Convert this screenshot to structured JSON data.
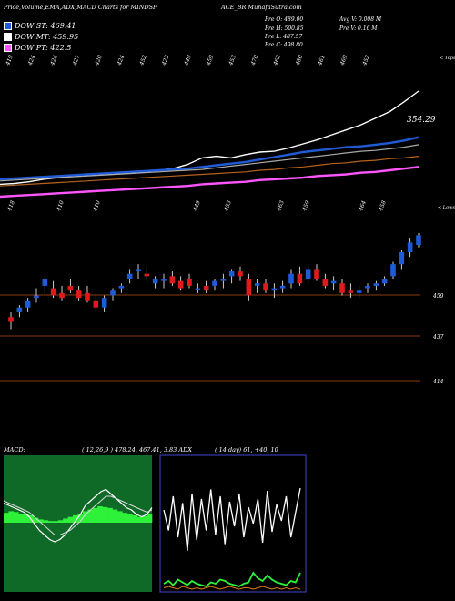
{
  "header": {
    "title": "Price,Volume,EMA,ADX,MACD Charts for MINDSP",
    "symbol": "ACE_BR",
    "site": "MunafaSutra.com"
  },
  "legend": [
    {
      "label": "DOW ST: 469.41",
      "color": "#1f5bd6"
    },
    {
      "label": "DOW MT: 459.95",
      "color": "#ffffff"
    },
    {
      "label": "DOW PT: 422.5",
      "color": "#ff55ff"
    }
  ],
  "stats": {
    "pre_o": "Pre  O: 489.00",
    "pre_h": "Pre  H: 500.85",
    "pre_l": "Pre  L: 487.57",
    "pre_c": "Pre  C: 498.80",
    "avg_v": "Avg V: 0.008  M",
    "pre_v": "Pre  V: 0.16  M"
  },
  "panel_labels": {
    "top": "< Tops",
    "lows": "< Lows",
    "macd": "MACD:",
    "macd_values": "( 12,26,9 ) 478.24,  467.41, 3.83 ADX",
    "adx_values": "( 14  day) 61,  +40,  10"
  },
  "chart_data": [
    {
      "type": "line",
      "name": "ema-panel",
      "top_tick_labels": [
        "419",
        "424",
        "424",
        "427",
        "420",
        "424",
        "452",
        "422",
        "449",
        "459",
        "453",
        "470",
        "462",
        "480",
        "461",
        "469",
        "452"
      ],
      "low_tick_labels": [
        "418",
        "410",
        "410",
        "449",
        "453",
        "463",
        "459",
        "464",
        "458"
      ],
      "last_price_label": "354.29",
      "series": [
        {
          "color": "#ffffff",
          "values": [
            386,
            387,
            389,
            392,
            394,
            396,
            397,
            398,
            399,
            400,
            401,
            403,
            405,
            410,
            418,
            420,
            418,
            422,
            425,
            426,
            430,
            435,
            440,
            446,
            452,
            458,
            466,
            474,
            486,
            499
          ]
        },
        {
          "color": "#1f5bd6",
          "values": [
            392,
            393,
            394,
            395,
            396,
            397,
            398,
            399,
            400,
            401,
            402,
            403,
            404,
            405,
            407,
            409,
            411,
            413,
            416,
            419,
            422,
            425,
            427,
            429,
            431,
            432,
            434,
            436,
            439,
            443
          ]
        },
        {
          "color": "#aaaaaa",
          "values": [
            390,
            391,
            392,
            393,
            394,
            395,
            396,
            397,
            398,
            399,
            400,
            401,
            402,
            403,
            404,
            406,
            408,
            410,
            412,
            414,
            416,
            418,
            420,
            422,
            424,
            426,
            427,
            429,
            431,
            434
          ]
        },
        {
          "color": "#b8621b",
          "values": [
            384,
            385,
            386,
            387,
            388,
            389,
            390,
            391,
            392,
            393,
            394,
            395,
            396,
            397,
            398,
            399,
            400,
            401,
            403,
            404,
            406,
            407,
            409,
            411,
            412,
            414,
            415,
            417,
            418,
            420
          ]
        },
        {
          "color": "#ff55ff",
          "values": [
            371,
            372,
            373,
            374,
            375,
            376,
            377,
            378,
            379,
            380,
            381,
            382,
            383,
            384,
            386,
            387,
            388,
            389,
            391,
            392,
            393,
            394,
            396,
            397,
            398,
            400,
            401,
            403,
            405,
            407
          ]
        }
      ]
    },
    {
      "type": "candlestick",
      "name": "price-panel",
      "y_labels": [
        "459",
        "437",
        "414"
      ],
      "candles": [
        {
          "o": 449,
          "h": 451,
          "l": 444,
          "c": 447,
          "up": false
        },
        {
          "o": 451,
          "h": 454,
          "l": 449,
          "c": 453,
          "up": true
        },
        {
          "o": 453,
          "h": 457,
          "l": 451,
          "c": 456,
          "up": true
        },
        {
          "o": 457,
          "h": 461,
          "l": 455,
          "c": 458,
          "up": true
        },
        {
          "o": 462,
          "h": 466,
          "l": 459,
          "c": 465,
          "up": true
        },
        {
          "o": 461,
          "h": 464,
          "l": 457,
          "c": 458,
          "up": false
        },
        {
          "o": 459,
          "h": 462,
          "l": 456,
          "c": 457,
          "up": false
        },
        {
          "o": 462,
          "h": 465,
          "l": 459,
          "c": 460,
          "up": false
        },
        {
          "o": 460,
          "h": 462,
          "l": 456,
          "c": 457,
          "up": false
        },
        {
          "o": 459,
          "h": 462,
          "l": 455,
          "c": 456,
          "up": false
        },
        {
          "o": 456,
          "h": 458,
          "l": 452,
          "c": 453,
          "up": false
        },
        {
          "o": 453,
          "h": 458,
          "l": 451,
          "c": 457,
          "up": true
        },
        {
          "o": 458,
          "h": 461,
          "l": 456,
          "c": 460,
          "up": true
        },
        {
          "o": 461,
          "h": 463,
          "l": 459,
          "c": 462,
          "up": true
        },
        {
          "o": 465,
          "h": 469,
          "l": 463,
          "c": 467,
          "up": true
        },
        {
          "o": 468,
          "h": 471,
          "l": 465,
          "c": 469,
          "up": true
        },
        {
          "o": 467,
          "h": 470,
          "l": 464,
          "c": 466,
          "up": false
        },
        {
          "o": 463,
          "h": 466,
          "l": 461,
          "c": 465,
          "up": true
        },
        {
          "o": 464,
          "h": 467,
          "l": 461,
          "c": 465,
          "up": true
        },
        {
          "o": 466,
          "h": 468,
          "l": 462,
          "c": 463,
          "up": false
        },
        {
          "o": 464,
          "h": 466,
          "l": 460,
          "c": 461,
          "up": false
        },
        {
          "o": 465,
          "h": 467,
          "l": 461,
          "c": 462,
          "up": false
        },
        {
          "o": 461,
          "h": 463,
          "l": 459,
          "c": 461,
          "up": true
        },
        {
          "o": 462,
          "h": 464,
          "l": 459,
          "c": 460,
          "up": false
        },
        {
          "o": 462,
          "h": 465,
          "l": 460,
          "c": 464,
          "up": true
        },
        {
          "o": 464,
          "h": 467,
          "l": 461,
          "c": 465,
          "up": true
        },
        {
          "o": 466,
          "h": 469,
          "l": 463,
          "c": 468,
          "up": true
        },
        {
          "o": 468,
          "h": 470,
          "l": 464,
          "c": 466,
          "up": false
        },
        {
          "o": 465,
          "h": 467,
          "l": 456,
          "c": 458,
          "up": false
        },
        {
          "o": 462,
          "h": 465,
          "l": 459,
          "c": 463,
          "up": true
        },
        {
          "o": 463,
          "h": 465,
          "l": 459,
          "c": 460,
          "up": false
        },
        {
          "o": 461,
          "h": 463,
          "l": 457,
          "c": 460,
          "up": true
        },
        {
          "o": 461,
          "h": 464,
          "l": 459,
          "c": 462,
          "up": true
        },
        {
          "o": 463,
          "h": 469,
          "l": 461,
          "c": 467,
          "up": true
        },
        {
          "o": 467,
          "h": 470,
          "l": 462,
          "c": 463,
          "up": false
        },
        {
          "o": 465,
          "h": 470,
          "l": 463,
          "c": 469,
          "up": true
        },
        {
          "o": 469,
          "h": 471,
          "l": 464,
          "c": 465,
          "up": false
        },
        {
          "o": 465,
          "h": 467,
          "l": 461,
          "c": 462,
          "up": false
        },
        {
          "o": 463,
          "h": 466,
          "l": 460,
          "c": 464,
          "up": true
        },
        {
          "o": 463,
          "h": 465,
          "l": 458,
          "c": 459,
          "up": false
        },
        {
          "o": 460,
          "h": 463,
          "l": 457,
          "c": 459,
          "up": false
        },
        {
          "o": 459,
          "h": 462,
          "l": 457,
          "c": 460,
          "up": true
        },
        {
          "o": 461,
          "h": 463,
          "l": 459,
          "c": 462,
          "up": true
        },
        {
          "o": 462,
          "h": 464,
          "l": 460,
          "c": 463,
          "up": true
        },
        {
          "o": 463,
          "h": 466,
          "l": 462,
          "c": 465,
          "up": true
        },
        {
          "o": 466,
          "h": 472,
          "l": 465,
          "c": 471,
          "up": true
        },
        {
          "o": 471,
          "h": 477,
          "l": 469,
          "c": 476,
          "up": true
        },
        {
          "o": 476,
          "h": 482,
          "l": 474,
          "c": 480,
          "up": true
        },
        {
          "o": 479,
          "h": 484,
          "l": 478,
          "c": 483,
          "up": true
        }
      ]
    },
    {
      "type": "line",
      "name": "macd-panel",
      "macd": [
        0.9,
        0.8,
        0.7,
        0.6,
        0.5,
        0.3,
        0.0,
        -0.3,
        -0.5,
        -0.7,
        -0.8,
        -0.7,
        -0.5,
        -0.2,
        0.1,
        0.4,
        0.8,
        1.0,
        1.2,
        1.4,
        1.5,
        1.3,
        1.1,
        0.9,
        0.7,
        0.6,
        0.4,
        0.3,
        0.4,
        0.7
      ],
      "signal": [
        1.0,
        0.9,
        0.8,
        0.7,
        0.6,
        0.5,
        0.3,
        0.1,
        -0.1,
        -0.3,
        -0.5,
        -0.5,
        -0.4,
        -0.3,
        -0.1,
        0.1,
        0.4,
        0.6,
        0.8,
        1.0,
        1.2,
        1.2,
        1.1,
        1.0,
        0.9,
        0.8,
        0.7,
        0.6,
        0.5,
        0.6
      ],
      "hist": [
        0.6,
        0.7,
        0.65,
        0.55,
        0.5,
        0.45,
        0.3,
        0.2,
        0.15,
        0.1,
        0.1,
        0.15,
        0.25,
        0.35,
        0.45,
        0.55,
        0.7,
        0.8,
        0.9,
        1.0,
        0.95,
        0.9,
        0.8,
        0.7,
        0.6,
        0.55,
        0.45,
        0.35,
        0.4,
        0.5
      ]
    },
    {
      "type": "line",
      "name": "adx-panel",
      "adx": [
        60,
        45,
        70,
        40,
        65,
        30,
        72,
        38,
        68,
        45,
        75,
        42,
        70,
        35,
        66,
        48,
        72,
        40,
        62,
        50,
        68,
        36,
        74,
        44,
        64,
        52,
        70,
        40,
        58,
        76
      ],
      "plus_di": [
        6,
        8,
        5,
        9,
        7,
        5,
        8,
        6,
        5,
        4,
        7,
        6,
        9,
        8,
        6,
        5,
        4,
        6,
        7,
        14,
        10,
        8,
        12,
        9,
        7,
        6,
        5,
        8,
        7,
        14
      ],
      "minus_di": [
        3,
        4,
        3,
        2,
        4,
        3,
        2,
        3,
        2,
        3,
        4,
        3,
        2,
        3,
        4,
        3,
        2,
        3,
        3,
        2,
        3,
        4,
        3,
        2,
        3,
        2,
        3,
        2,
        3,
        2
      ]
    }
  ]
}
